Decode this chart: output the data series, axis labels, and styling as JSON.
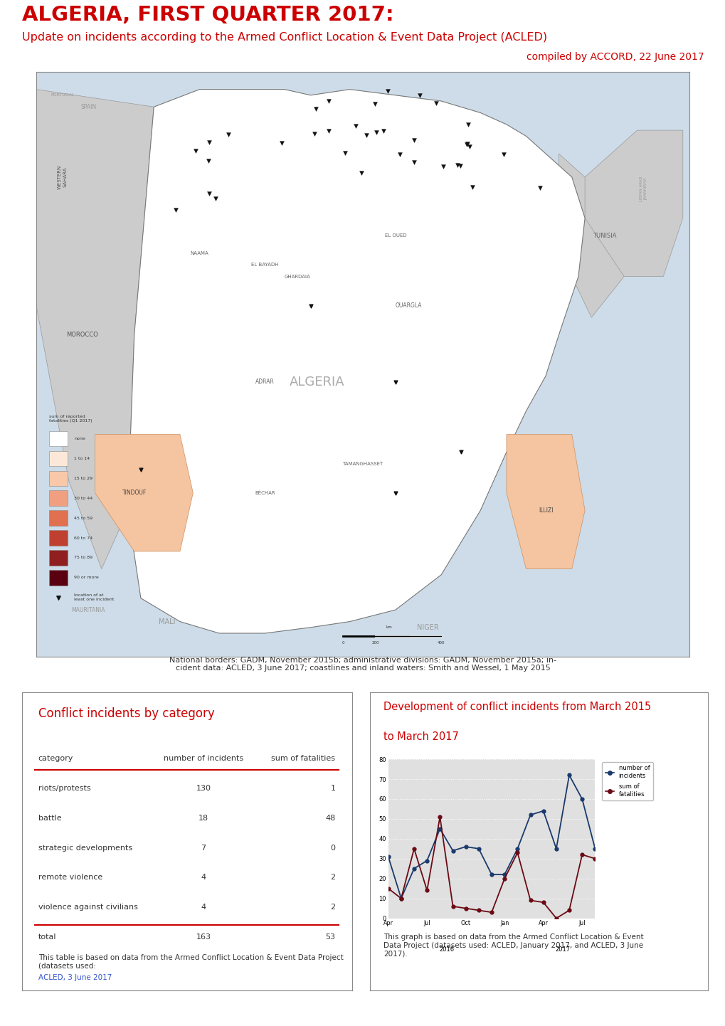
{
  "title_main": "ALGERIA, FIRST QUARTER 2017:",
  "title_sub": "Update on incidents according to the Armed Conflict Location & Event Data Project (ACLED)",
  "title_compiled": "compiled by ACCORD, 22 June 2017",
  "red": "#cc0000",
  "blue_link": "#3355cc",
  "dark_navy": "#1a2e5a",
  "dark_maroon": "#6b0a14",
  "table_title": "Conflict incidents by category",
  "table_headers": [
    "category",
    "number of incidents",
    "sum of fatalities"
  ],
  "table_rows": [
    [
      "riots/protests",
      "130",
      "1"
    ],
    [
      "battle",
      "18",
      "48"
    ],
    [
      "strategic developments",
      "7",
      "0"
    ],
    [
      "remote violence",
      "4",
      "2"
    ],
    [
      "violence against civilians",
      "4",
      "2"
    ]
  ],
  "table_total": [
    "total",
    "163",
    "53"
  ],
  "table_note1": "This table is based on data from the Armed Conflict Location & Event Data Project\n(datasets used: ",
  "table_note_link": "ACLED, 3 June 2017",
  "table_note2": ").",
  "chart_title_line1": "Development of conflict incidents from March 2015",
  "chart_title_line2": "to March 2017",
  "chart_note": "This graph is based on data from the Armed Conflict Location & Event\nData Project (datasets used: ACLED, January 2017, and ACLED, 3 June\n2017).",
  "incidents": [
    31,
    10,
    25,
    29,
    45,
    34,
    36,
    35,
    22,
    22,
    35,
    52,
    54,
    35,
    72,
    60,
    35
  ],
  "fatalities": [
    15,
    10,
    35,
    14,
    51,
    6,
    5,
    4,
    3,
    20,
    33,
    9,
    8,
    0,
    4,
    32,
    30
  ],
  "incidents_color": "#1a3a6b",
  "fatalities_color": "#6b0a14",
  "chart_bg": "#e0e0e0",
  "source_text_line1": "National borders: GADM, November 2015b; administrative divisions: GADM, November 2015a; in-",
  "source_text_line2": "cident data: ACLED, 3 June 2017; coastlines and inland waters: Smith and Wessel, 1 May 2015"
}
